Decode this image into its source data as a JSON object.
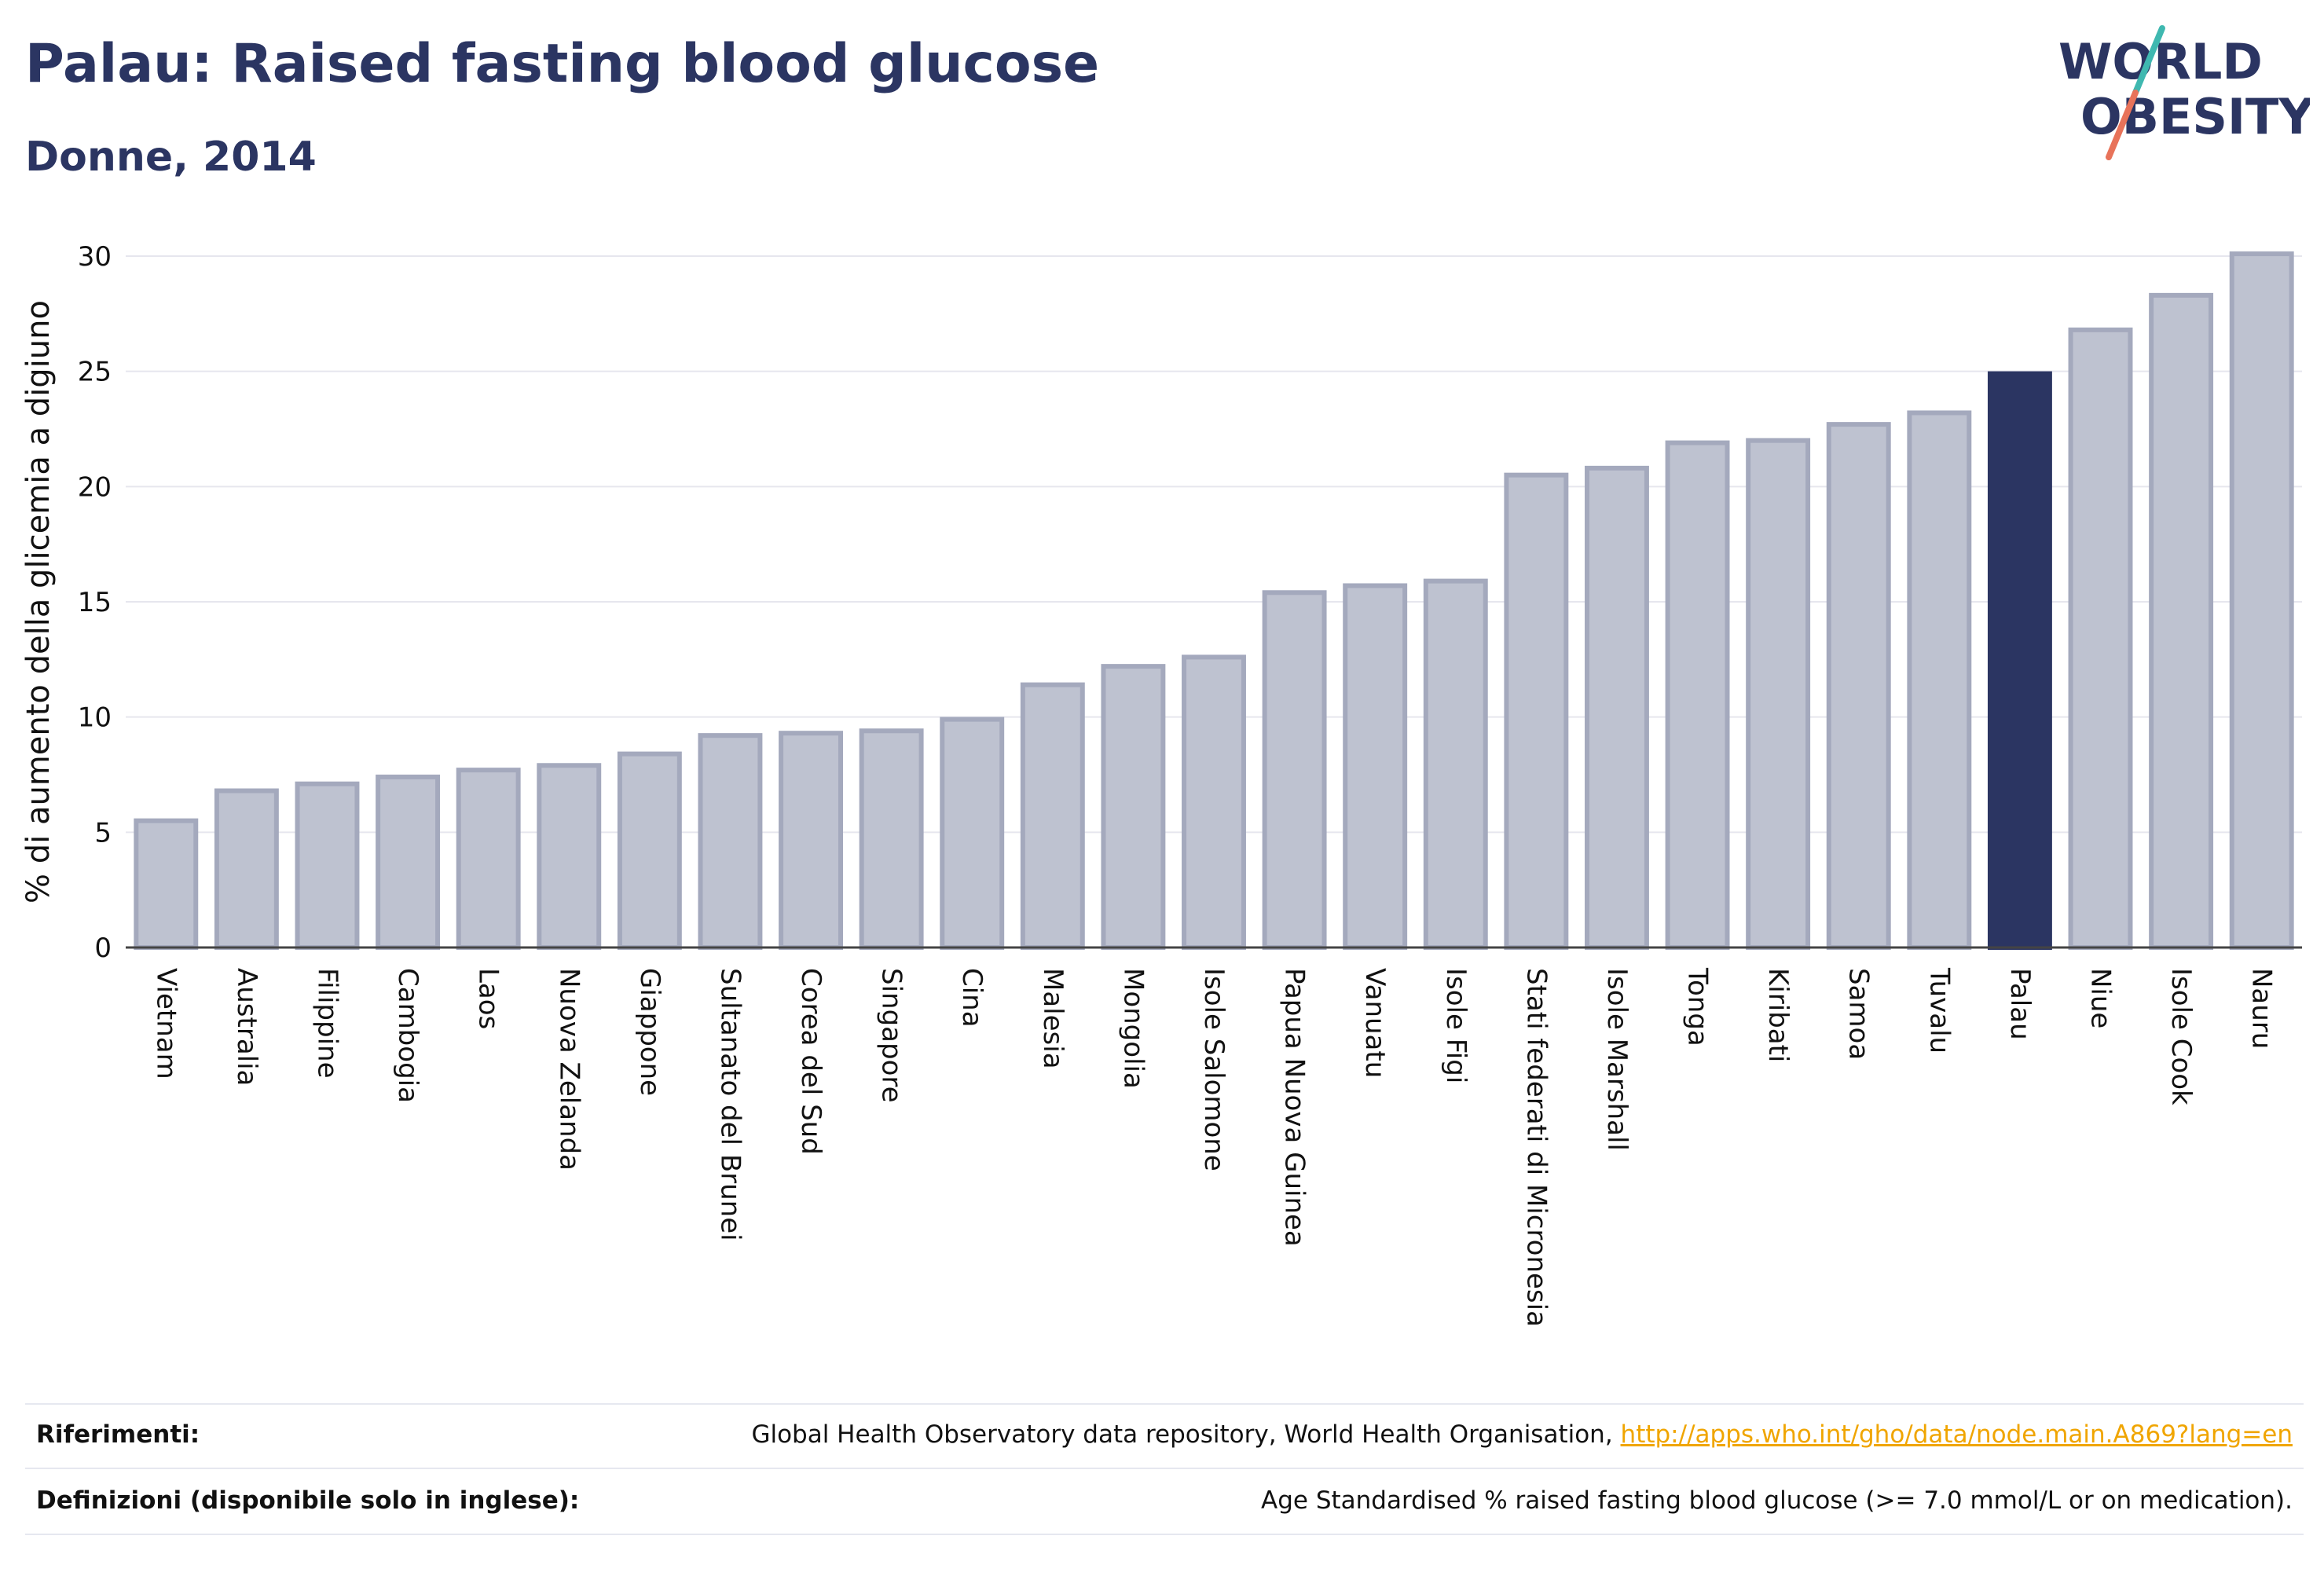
{
  "header": {
    "title": "Palau: Raised fasting blood glucose",
    "subtitle": "Donne, 2014",
    "logo_text": [
      "WORLD",
      "OBESITY"
    ],
    "logo_colors": {
      "text": "#2b3562",
      "accent_teal": "#3fb8b0",
      "accent_coral": "#e8735a"
    }
  },
  "chart_data": {
    "type": "bar",
    "ylabel": "% di aumento della glicemia a digiuno",
    "xlabel": "",
    "ylim": [
      0,
      30
    ],
    "yticks": [
      0,
      5,
      10,
      15,
      20,
      25,
      30
    ],
    "grid": true,
    "highlight": "Palau",
    "colors": {
      "bar": "#bec2d0",
      "bar_edge": "#a4a9bd",
      "highlight": "#2b3562"
    },
    "categories": [
      "Vietnam",
      "Australia",
      "Filippine",
      "Cambogia",
      "Laos",
      "Nuova Zelanda",
      "Giappone",
      "Sultanato del Brunei",
      "Corea del Sud",
      "Singapore",
      "Cina",
      "Malesia",
      "Mongolia",
      "Isole Salomone",
      "Papua Nuova Guinea",
      "Vanuatu",
      "Isole Figi",
      "Stati federati di Micronesia",
      "Isole Marshall",
      "Tonga",
      "Kiribati",
      "Samoa",
      "Tuvalu",
      "Palau",
      "Niue",
      "Isole Cook",
      "Nauru"
    ],
    "values": [
      5.5,
      6.8,
      7.1,
      7.4,
      7.7,
      7.9,
      8.4,
      9.2,
      9.3,
      9.4,
      9.9,
      11.4,
      12.2,
      12.6,
      15.4,
      15.7,
      15.9,
      20.5,
      20.8,
      21.9,
      22.0,
      22.7,
      23.2,
      24.9,
      26.8,
      28.3,
      30.1
    ]
  },
  "footer": {
    "references_label": "Riferimenti:",
    "references_text": "Global Health Observatory data repository, World Health Organisation, ",
    "references_link": "http://apps.who.int/gho/data/node.main.A869?lang=en",
    "definitions_label": "Definizioni (disponibile solo in inglese):",
    "definitions_text": "Age Standardised % raised fasting blood glucose (>= 7.0 mmol/L or on medication)."
  }
}
